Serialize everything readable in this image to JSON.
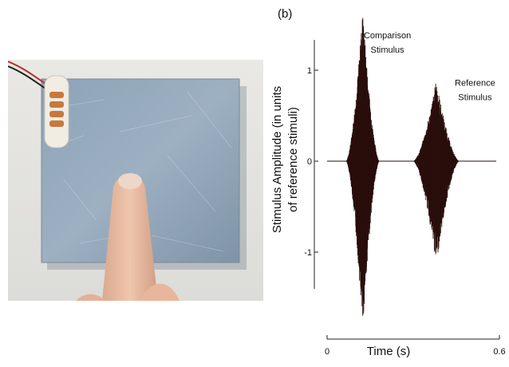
{
  "panel_label": "(b)",
  "chart_data": {
    "type": "line",
    "title": "",
    "xlabel": "Time (s)",
    "ylabel": [
      "Stimulus Amplitude (in units",
      "of reference stimuli)"
    ],
    "xlim": [
      0,
      0.6
    ],
    "ylim": [
      -1.85,
      1.7
    ],
    "x_ticks": [
      {
        "value": 0,
        "label": "0"
      },
      {
        "value": 0.6,
        "label": "0.6"
      }
    ],
    "y_ticks": [
      {
        "value": 1,
        "label": "1"
      },
      {
        "value": 0,
        "label": "0"
      },
      {
        "value": -1,
        "label": "-1"
      }
    ],
    "grid": false,
    "series": [
      {
        "description": "comparison burst",
        "center_s": 0.124,
        "width_s": 0.115,
        "peak": 1.67,
        "trough": -1.85,
        "color": "#2a0f0c"
      },
      {
        "description": "reference burst",
        "center_s": 0.38,
        "width_s": 0.16,
        "peak": 0.9,
        "trough": -1.15,
        "color": "#2a0f0c"
      }
    ],
    "annotations": [
      {
        "lines": [
          "Comparison",
          "Stimulus"
        ],
        "x": 0.21,
        "y": 1.35
      },
      {
        "lines": [
          "Reference",
          "Stimulus"
        ],
        "x": 0.515,
        "y": 0.83
      }
    ]
  }
}
